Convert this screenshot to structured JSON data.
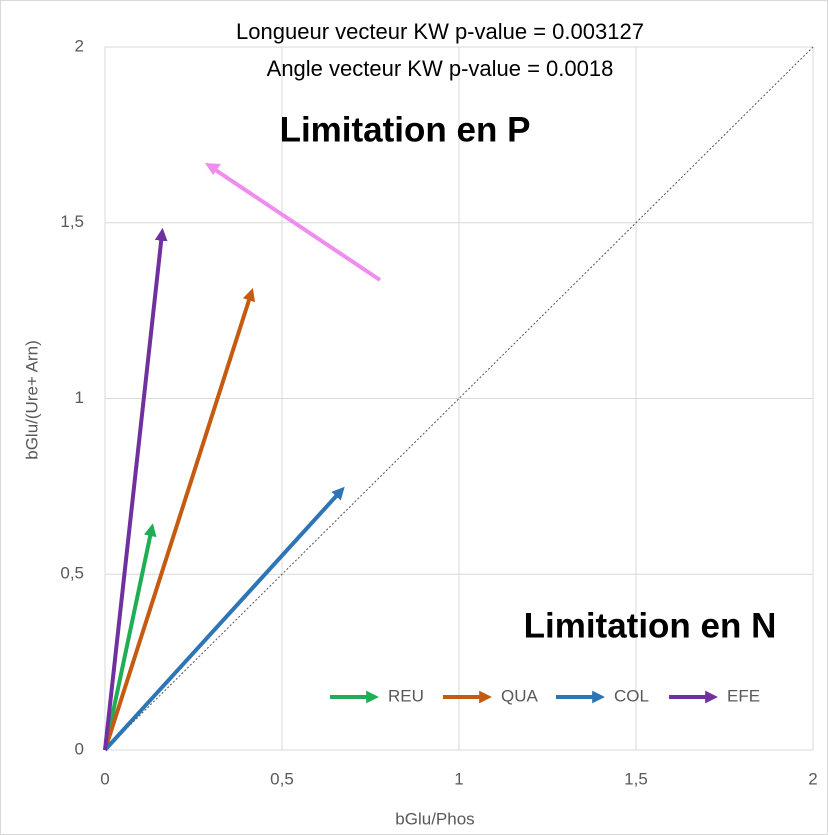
{
  "chart_data": {
    "type": "vector",
    "annotations": [
      "Longueur vecteur KW p-value = 0.003127",
      "Angle vecteur KW p-value = 0.0018",
      "Limitation en P",
      "Limitation en N"
    ],
    "x_label": "bGlu/Phos",
    "y_label": "bGlu/(Ure+ Arn)",
    "series": [
      {
        "name": "REU",
        "color": "#1fae55",
        "x": [
          0.13
        ],
        "values": [
          0.62
        ]
      },
      {
        "name": "QUA",
        "color": "#c55a11",
        "x": [
          0.41
        ],
        "values": [
          1.29
        ]
      },
      {
        "name": "COL",
        "color": "#2e75b6",
        "x": [
          0.66
        ],
        "values": [
          0.73
        ]
      },
      {
        "name": "EFE",
        "color": "#7030a0",
        "x": [
          0.16
        ],
        "values": [
          1.46
        ]
      }
    ],
    "xlim": [
      0,
      2
    ],
    "ylim": [
      0,
      2
    ],
    "xticks": [
      0,
      {
        "value": 0.5,
        "label": "0,5"
      },
      1,
      {
        "value": 1.5,
        "label": "1,5"
      },
      2
    ],
    "yticks": [
      0,
      {
        "value": 0.5,
        "label": "0,5"
      },
      1,
      {
        "value": 1.5,
        "label": "1,5"
      },
      2
    ],
    "grid": true,
    "identity_line": true,
    "legend": "lower-right"
  }
}
